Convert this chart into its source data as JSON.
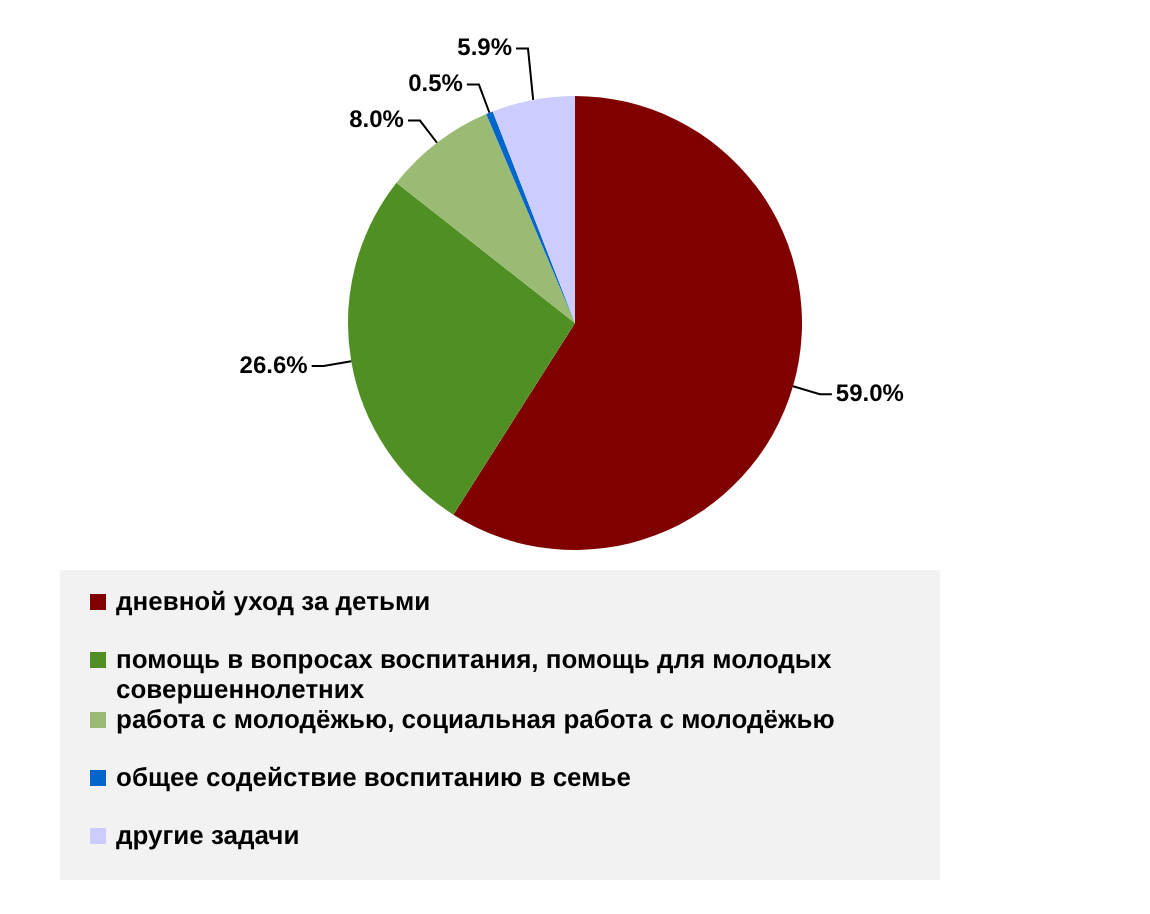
{
  "chart_data": {
    "type": "pie",
    "categories": [
      "дневной уход за детьми",
      "помощь в вопросах воспитания, помощь для молодых совершеннолетних",
      "работа с молодёжью, социальная работа с молодёжью",
      "общее содействие воспитанию в семье",
      "другие задачи"
    ],
    "values": [
      59.0,
      26.6,
      8.0,
      0.5,
      5.9
    ],
    "colors": [
      "#800000",
      "#4f8f23",
      "#9bbb75",
      "#0066cc",
      "#ccccff"
    ],
    "value_labels": [
      "59.0%",
      "26.6%",
      "8.0%",
      "0.5%",
      "5.9%"
    ],
    "legend": "bottom"
  }
}
